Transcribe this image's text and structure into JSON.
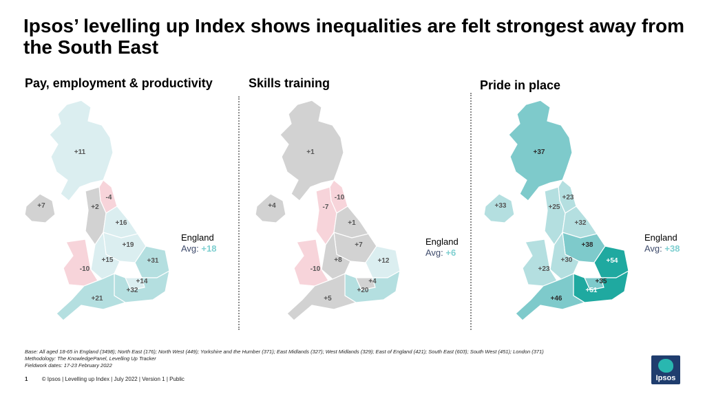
{
  "title": "Ipsos’ levelling up Index shows inequalities are felt strongest away from the South East",
  "colors": {
    "grey": "#d2d2d2",
    "pink": "#f7d4da",
    "pale_teal": "#dbeef0",
    "light_teal": "#b4dfe0",
    "mid_teal": "#7ecacb",
    "dark_teal": "#1fa9a0",
    "england_avg_value": "#7ecfd0"
  },
  "panels": [
    {
      "title": "Pay, employment & productivity",
      "england_label": "England",
      "avg_label": "Avg:",
      "avg_value": "+18",
      "regions": {
        "scotland": "+11",
        "northern_ireland": "+7",
        "north_east": "-4",
        "north_west": "+2",
        "yorkshire": "+16",
        "east_midlands": "+19",
        "west_midlands": "+15",
        "wales": "-10",
        "east_of_england": "+31",
        "london": "+14",
        "south_east": "+32",
        "south_west": "+21"
      }
    },
    {
      "title": "Skills training",
      "england_label": "England",
      "avg_label": "Avg:",
      "avg_value": "+6",
      "regions": {
        "scotland": "+1",
        "northern_ireland": "+4",
        "north_east": "-10",
        "north_west": "-7",
        "yorkshire": "+1",
        "east_midlands": "+7",
        "west_midlands": "+8",
        "wales": "-10",
        "east_of_england": "+12",
        "london": "+4",
        "south_east": "+20",
        "south_west": "+5"
      }
    },
    {
      "title": "Pride in place",
      "england_label": "England",
      "avg_label": "Avg:",
      "avg_value": "+38",
      "regions": {
        "scotland": "+37",
        "northern_ireland": "+33",
        "north_east": "+23",
        "north_west": "+25",
        "yorkshire": "+32",
        "east_midlands": "+38",
        "west_midlands": "+30",
        "wales": "+23",
        "east_of_england": "+54",
        "london": "+35",
        "south_east": "+51",
        "south_west": "+46"
      }
    }
  ],
  "footnotes": [
    "Base: All aged 18-65 in England (3498); North East (176); North West (449); Yorkshire and the Humber (371); East Midlands (327); West Midlands (329); East of England (421); South East (603); South West (451); London (371)",
    "Methodology: The KnowledgePanel, Levelling Up Tracker",
    "Fieldwork dates: 17-23 February 2022"
  ],
  "footer": {
    "page_number": "1",
    "text": "© Ipsos | Levelling up Index | July 2022 | Version 1 | Public"
  },
  "logo_text": "Ipsos"
}
